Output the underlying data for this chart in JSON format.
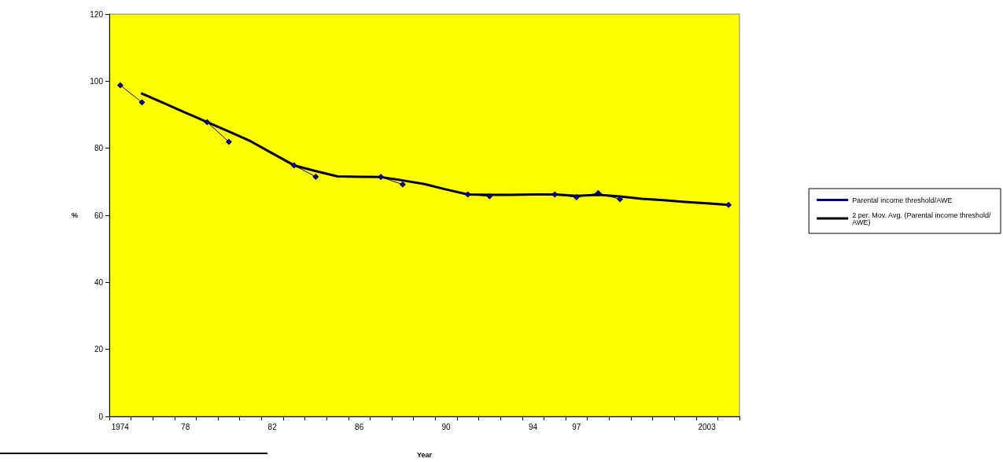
{
  "chart_data": {
    "type": "line",
    "xlabel": "Year",
    "ylabel": "%",
    "categories": [
      "1974",
      null,
      null,
      "78",
      null,
      null,
      null,
      "82",
      null,
      null,
      null,
      "86",
      null,
      null,
      null,
      "90",
      null,
      null,
      null,
      "94",
      null,
      "97",
      null,
      null,
      null,
      null,
      null,
      "2003",
      null
    ],
    "series": [
      {
        "name": "Parental income threshold/AWE",
        "color": "#000080",
        "marker": "diamond",
        "values": [
          98.8,
          93.7,
          null,
          null,
          87.8,
          81.9,
          null,
          null,
          74.9,
          71.5,
          null,
          null,
          71.4,
          69.2,
          null,
          null,
          66.2,
          65.7,
          null,
          null,
          66.2,
          65.4,
          66.6,
          64.8,
          null,
          null,
          null,
          null,
          63.1
        ]
      },
      {
        "name": "2 per. Mov. Avg. (Parental income threshold/AWE)",
        "color": "#000000",
        "marker": "none",
        "values": [
          null,
          96.3,
          93.5,
          90.6,
          87.8,
          85.0,
          82.1,
          78.5,
          74.9,
          73.2,
          71.6,
          71.5,
          71.4,
          70.4,
          69.3,
          67.7,
          66.2,
          66.1,
          66.1,
          66.2,
          66.2,
          65.8,
          66.1,
          65.6,
          64.9,
          64.5,
          64.0,
          63.6,
          63.1
        ]
      }
    ],
    "ylim": [
      0,
      120
    ],
    "yticks": [
      0,
      20,
      40,
      60,
      80,
      100,
      120
    ],
    "grid": false,
    "legend": "right"
  }
}
